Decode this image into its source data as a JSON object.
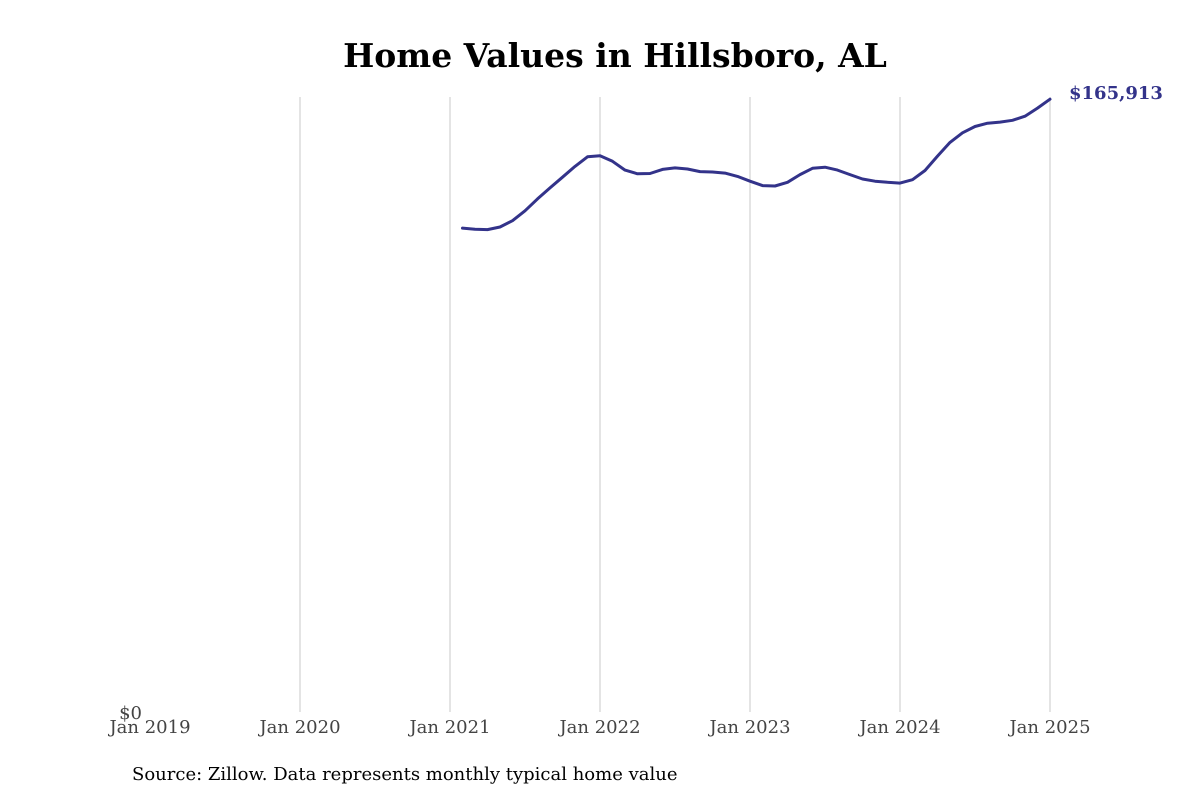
{
  "colors": {
    "line": "#33338a",
    "gridline": "#c8c8c8",
    "end_label": "#33338a",
    "tick_label": "#444444"
  },
  "chart_data": {
    "type": "line",
    "title": "Home Values in Hillsboro, AL",
    "source": "Source: Zillow. Data represents monthly typical home value",
    "xlabel": "",
    "ylabel": "",
    "x_ticks": [
      "Jan 2019",
      "Jan 2020",
      "Jan 2021",
      "Jan 2022",
      "Jan 2023",
      "Jan 2024",
      "Jan 2025"
    ],
    "xlim": [
      "2019-01",
      "2025-01"
    ],
    "ylim": [
      0,
      166500
    ],
    "y_ticks": [
      {
        "value": 0,
        "label": "$0"
      }
    ],
    "grid": "vertical",
    "end_label": "$165,913",
    "series": [
      {
        "points": [
          [
            "2021-02",
            131000
          ],
          [
            "2021-03",
            130700
          ],
          [
            "2021-04",
            130600
          ],
          [
            "2021-05",
            131300
          ],
          [
            "2021-06",
            133000
          ],
          [
            "2021-07",
            135700
          ],
          [
            "2021-08",
            138900
          ],
          [
            "2021-09",
            141900
          ],
          [
            "2021-10",
            144800
          ],
          [
            "2021-11",
            147700
          ],
          [
            "2021-12",
            150300
          ],
          [
            "2022-01",
            150600
          ],
          [
            "2022-02",
            149100
          ],
          [
            "2022-03",
            146700
          ],
          [
            "2022-04",
            145700
          ],
          [
            "2022-05",
            145800
          ],
          [
            "2022-06",
            146900
          ],
          [
            "2022-07",
            147300
          ],
          [
            "2022-08",
            147000
          ],
          [
            "2022-09",
            146300
          ],
          [
            "2022-10",
            146200
          ],
          [
            "2022-11",
            145900
          ],
          [
            "2022-12",
            145000
          ],
          [
            "2023-01",
            143700
          ],
          [
            "2023-02",
            142500
          ],
          [
            "2023-03",
            142400
          ],
          [
            "2023-04",
            143400
          ],
          [
            "2023-05",
            145500
          ],
          [
            "2023-06",
            147200
          ],
          [
            "2023-07",
            147500
          ],
          [
            "2023-08",
            146700
          ],
          [
            "2023-09",
            145500
          ],
          [
            "2023-10",
            144300
          ],
          [
            "2023-11",
            143700
          ],
          [
            "2023-12",
            143400
          ],
          [
            "2024-01",
            143200
          ],
          [
            "2024-02",
            144100
          ],
          [
            "2024-03",
            146600
          ],
          [
            "2024-04",
            150500
          ],
          [
            "2024-05",
            154200
          ],
          [
            "2024-06",
            156800
          ],
          [
            "2024-07",
            158500
          ],
          [
            "2024-08",
            159400
          ],
          [
            "2024-09",
            159700
          ],
          [
            "2024-10",
            160200
          ],
          [
            "2024-11",
            161300
          ],
          [
            "2024-12",
            163500
          ],
          [
            "2025-01",
            165913
          ]
        ]
      }
    ]
  }
}
